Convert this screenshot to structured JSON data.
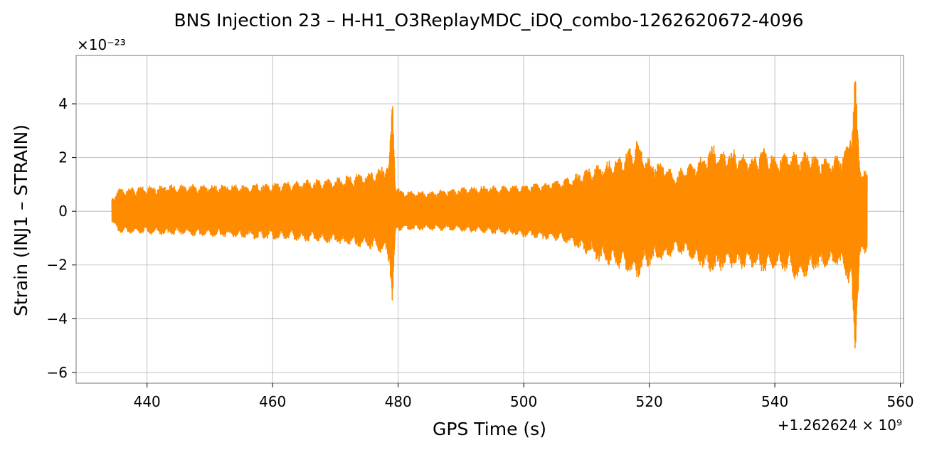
{
  "chart_data": {
    "type": "line",
    "title": "BNS Injection 23 – H-H1_O3ReplayMDC_iDQ_combo-1262620672-4096",
    "xlabel": "GPS Time (s)",
    "ylabel": "Strain (INJ1 – STRAIN)",
    "x_offset_label": "+1.262624 × 10⁹",
    "y_scale_label": "×10⁻²³",
    "xlim": [
      428.7,
      560.5
    ],
    "ylim": [
      -6.4,
      5.8
    ],
    "x_ticks": [
      440,
      460,
      480,
      500,
      520,
      540,
      560
    ],
    "x_tick_labels": [
      "440",
      "460",
      "480",
      "500",
      "520",
      "540",
      "560"
    ],
    "y_ticks": [
      -6,
      -4,
      -2,
      0,
      2,
      4
    ],
    "y_tick_labels": [
      "−6",
      "−4",
      "−2",
      "0",
      "2",
      "4"
    ],
    "grid": true,
    "series": [
      {
        "color": "#ff8c00",
        "x_range": [
          434.4,
          554.7
        ],
        "envelope_x": [
          434.4,
          435.5,
          440,
          445,
          450,
          455,
          460,
          465,
          470,
          474,
          477,
          478.6,
          479.1,
          479.6,
          480.5,
          485,
          490,
          495,
          500,
          505,
          508,
          510,
          512,
          515,
          517,
          518,
          520,
          522,
          524,
          526,
          528,
          530,
          532,
          534,
          536,
          538,
          540,
          542,
          544,
          546,
          548,
          550,
          551.5,
          552.2,
          552.8,
          553.5,
          554.7
        ],
        "envelope_upper": [
          0.5,
          0.85,
          0.95,
          1.0,
          1.0,
          1.0,
          1.05,
          1.15,
          1.25,
          1.4,
          1.6,
          2.0,
          4.5,
          1.0,
          0.75,
          0.75,
          0.9,
          0.95,
          1.0,
          1.15,
          1.35,
          1.6,
          1.8,
          2.0,
          2.35,
          2.65,
          1.95,
          1.85,
          1.45,
          1.75,
          2.05,
          2.5,
          2.3,
          2.3,
          2.05,
          2.45,
          2.05,
          2.25,
          2.15,
          2.3,
          2.0,
          2.1,
          2.4,
          3.2,
          5.2,
          1.8,
          1.6
        ],
        "envelope_lower": [
          -0.4,
          -0.8,
          -0.85,
          -0.9,
          -0.95,
          -1.0,
          -1.05,
          -1.1,
          -1.2,
          -1.35,
          -1.5,
          -1.9,
          -3.7,
          -0.8,
          -0.7,
          -0.7,
          -0.75,
          -0.85,
          -0.95,
          -1.1,
          -1.3,
          -1.6,
          -1.9,
          -2.1,
          -2.35,
          -2.55,
          -2.0,
          -1.9,
          -1.6,
          -1.7,
          -2.1,
          -2.35,
          -2.2,
          -2.15,
          -2.1,
          -2.3,
          -2.2,
          -2.3,
          -2.7,
          -2.25,
          -2.1,
          -2.0,
          -2.6,
          -3.1,
          -5.8,
          -2.0,
          -1.5
        ]
      }
    ]
  }
}
